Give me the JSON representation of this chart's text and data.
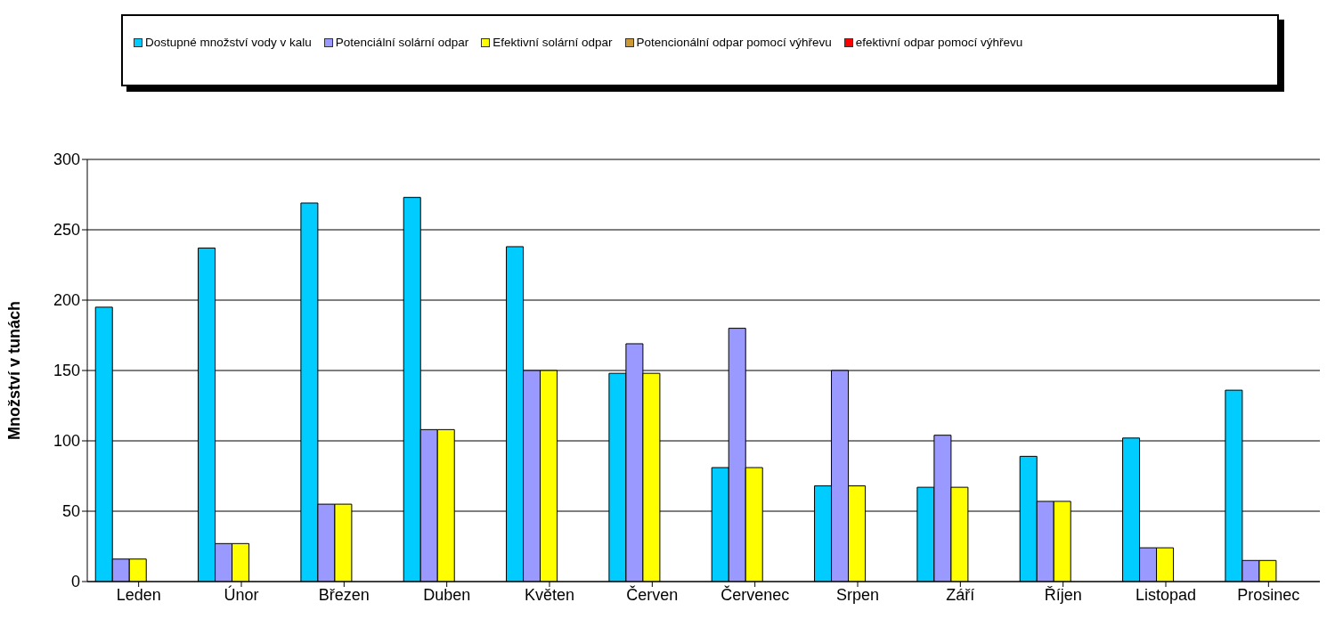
{
  "chart_data": {
    "type": "bar",
    "ylabel": "Množství v tunách",
    "categories": [
      "Leden",
      "Únor",
      "Březen",
      "Duben",
      "Květen",
      "Červen",
      "Červenec",
      "Srpen",
      "Září",
      "Říjen",
      "Listopad",
      "Prosinec"
    ],
    "series": [
      {
        "name": "Dostupné množství vody v kalu",
        "color": "#00ccff",
        "values": [
          195,
          237,
          269,
          273,
          238,
          148,
          81,
          68,
          67,
          89,
          102,
          136
        ]
      },
      {
        "name": "Potenciální solární odpar",
        "color": "#9999ff",
        "values": [
          16,
          27,
          55,
          108,
          150,
          169,
          180,
          150,
          104,
          57,
          24,
          15
        ]
      },
      {
        "name": "Efektivní solární odpar",
        "color": "#ffff00",
        "values": [
          16,
          27,
          55,
          108,
          150,
          148,
          81,
          68,
          67,
          57,
          24,
          15
        ]
      },
      {
        "name": "Potencionální odpar pomocí výhřevu",
        "color": "#cc9933",
        "values": [
          0,
          0,
          0,
          0,
          0,
          0,
          0,
          0,
          0,
          0,
          0,
          0
        ]
      },
      {
        "name": "efektivní odpar pomocí výhřevu",
        "color": "#ff0000",
        "values": [
          0,
          0,
          0,
          0,
          0,
          0,
          0,
          0,
          0,
          0,
          0,
          0
        ]
      }
    ],
    "ylim": [
      0,
      300
    ],
    "yticks": [
      0,
      50,
      100,
      150,
      200,
      250,
      300
    ],
    "grid": "y",
    "legend": "top"
  }
}
